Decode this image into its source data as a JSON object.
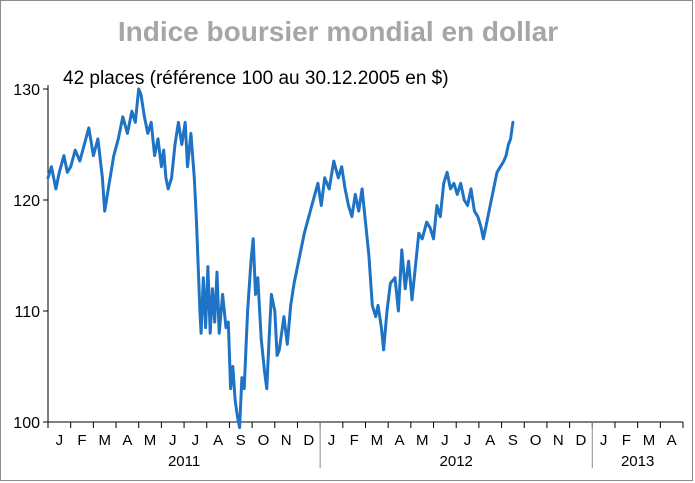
{
  "chart_data": {
    "type": "line",
    "title": "Indice boursier mondial en dollar",
    "subtitle": "42 places (référence 100 au 30.12.2005 en $)",
    "xlabel": "",
    "ylabel": "",
    "ylim": [
      100,
      130
    ],
    "yticks": [
      "100",
      "110",
      "120",
      "130"
    ],
    "months": [
      "J",
      "F",
      "M",
      "A",
      "M",
      "J",
      "J",
      "A",
      "S",
      "O",
      "N",
      "D",
      "J",
      "F",
      "M",
      "A",
      "M",
      "J",
      "J",
      "A",
      "S",
      "O",
      "N",
      "D",
      "J",
      "F",
      "M",
      "A"
    ],
    "years": [
      "2011",
      "2012",
      "2013"
    ],
    "line_color": "#1f73c4",
    "series": [
      {
        "name": "Indice boursier mondial",
        "points": [
          [
            0.0,
            122.0
          ],
          [
            0.15,
            123.0
          ],
          [
            0.35,
            121.0
          ],
          [
            0.5,
            122.5
          ],
          [
            0.7,
            124.0
          ],
          [
            0.85,
            122.5
          ],
          [
            1.0,
            123.0
          ],
          [
            1.2,
            124.5
          ],
          [
            1.4,
            123.5
          ],
          [
            1.6,
            125.0
          ],
          [
            1.8,
            126.5
          ],
          [
            2.0,
            124.0
          ],
          [
            2.2,
            125.5
          ],
          [
            2.4,
            122.0
          ],
          [
            2.5,
            119.0
          ],
          [
            2.7,
            121.5
          ],
          [
            2.9,
            124.0
          ],
          [
            3.1,
            125.5
          ],
          [
            3.3,
            127.5
          ],
          [
            3.5,
            126.0
          ],
          [
            3.7,
            128.0
          ],
          [
            3.85,
            127.0
          ],
          [
            4.0,
            130.0
          ],
          [
            4.1,
            129.5
          ],
          [
            4.25,
            127.5
          ],
          [
            4.4,
            126.0
          ],
          [
            4.55,
            127.0
          ],
          [
            4.7,
            124.0
          ],
          [
            4.85,
            125.5
          ],
          [
            5.0,
            123.0
          ],
          [
            5.1,
            124.5
          ],
          [
            5.2,
            122.0
          ],
          [
            5.3,
            121.0
          ],
          [
            5.45,
            122.0
          ],
          [
            5.6,
            125.0
          ],
          [
            5.75,
            127.0
          ],
          [
            5.9,
            125.0
          ],
          [
            6.05,
            127.0
          ],
          [
            6.15,
            123.0
          ],
          [
            6.3,
            126.0
          ],
          [
            6.45,
            122.0
          ],
          [
            6.55,
            118.0
          ],
          [
            6.7,
            110.0
          ],
          [
            6.75,
            108.0
          ],
          [
            6.85,
            113.0
          ],
          [
            6.95,
            108.5
          ],
          [
            7.05,
            114.0
          ],
          [
            7.15,
            108.0
          ],
          [
            7.25,
            112.0
          ],
          [
            7.35,
            109.0
          ],
          [
            7.45,
            113.5
          ],
          [
            7.55,
            108.0
          ],
          [
            7.7,
            111.5
          ],
          [
            7.85,
            108.5
          ],
          [
            7.95,
            109.0
          ],
          [
            8.05,
            103.0
          ],
          [
            8.15,
            105.0
          ],
          [
            8.25,
            102.0
          ],
          [
            8.35,
            100.5
          ],
          [
            8.45,
            99.5
          ],
          [
            8.55,
            104.0
          ],
          [
            8.65,
            103.0
          ],
          [
            8.8,
            110.0
          ],
          [
            8.95,
            114.5
          ],
          [
            9.05,
            116.5
          ],
          [
            9.15,
            111.5
          ],
          [
            9.25,
            113.0
          ],
          [
            9.4,
            107.5
          ],
          [
            9.55,
            104.5
          ],
          [
            9.65,
            103.0
          ],
          [
            9.75,
            107.5
          ],
          [
            9.85,
            111.5
          ],
          [
            10.0,
            110.0
          ],
          [
            10.1,
            106.0
          ],
          [
            10.2,
            106.5
          ],
          [
            10.3,
            108.0
          ],
          [
            10.4,
            109.5
          ],
          [
            10.55,
            107.0
          ],
          [
            10.7,
            110.5
          ],
          [
            10.85,
            112.5
          ],
          [
            11.0,
            114.0
          ],
          [
            11.15,
            115.5
          ],
          [
            11.3,
            117.0
          ],
          [
            11.5,
            118.5
          ],
          [
            11.7,
            120.0
          ],
          [
            11.9,
            121.5
          ],
          [
            12.05,
            119.5
          ],
          [
            12.2,
            122.0
          ],
          [
            12.4,
            121.0
          ],
          [
            12.6,
            123.5
          ],
          [
            12.8,
            122.0
          ],
          [
            12.95,
            123.0
          ],
          [
            13.1,
            121.0
          ],
          [
            13.25,
            119.5
          ],
          [
            13.4,
            118.5
          ],
          [
            13.55,
            120.5
          ],
          [
            13.7,
            119.0
          ],
          [
            13.85,
            121.0
          ],
          [
            14.0,
            118.0
          ],
          [
            14.15,
            115.0
          ],
          [
            14.3,
            110.5
          ],
          [
            14.45,
            109.5
          ],
          [
            14.55,
            110.5
          ],
          [
            14.7,
            108.5
          ],
          [
            14.8,
            106.5
          ],
          [
            14.95,
            110.0
          ],
          [
            15.1,
            112.5
          ],
          [
            15.3,
            113.0
          ],
          [
            15.45,
            110.0
          ],
          [
            15.6,
            115.5
          ],
          [
            15.75,
            112.0
          ],
          [
            15.9,
            114.5
          ],
          [
            16.05,
            111.0
          ],
          [
            16.2,
            114.0
          ],
          [
            16.35,
            117.0
          ],
          [
            16.5,
            116.5
          ],
          [
            16.7,
            118.0
          ],
          [
            16.85,
            117.5
          ],
          [
            17.0,
            116.5
          ],
          [
            17.15,
            119.5
          ],
          [
            17.3,
            118.5
          ],
          [
            17.45,
            121.5
          ],
          [
            17.6,
            122.5
          ],
          [
            17.75,
            121.0
          ],
          [
            17.9,
            121.5
          ],
          [
            18.05,
            120.5
          ],
          [
            18.2,
            121.5
          ],
          [
            18.35,
            120.0
          ],
          [
            18.5,
            119.5
          ],
          [
            18.65,
            121.0
          ],
          [
            18.8,
            119.0
          ],
          [
            18.95,
            118.5
          ],
          [
            19.1,
            117.5
          ],
          [
            19.2,
            116.5
          ],
          [
            19.35,
            118.0
          ],
          [
            19.5,
            119.5
          ],
          [
            19.65,
            121.0
          ],
          [
            19.8,
            122.5
          ],
          [
            19.95,
            123.0
          ],
          [
            20.1,
            123.5
          ],
          [
            20.2,
            124.0
          ],
          [
            20.3,
            125.0
          ],
          [
            20.4,
            125.5
          ],
          [
            20.5,
            127.0
          ]
        ]
      }
    ]
  }
}
